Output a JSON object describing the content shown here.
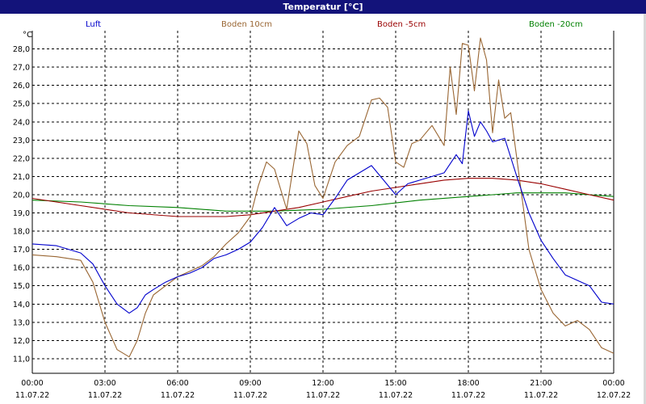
{
  "window_title": "Temperatur [°C]",
  "unit_label": "°C",
  "chart_data": {
    "type": "line",
    "title": "Temperatur [°C]",
    "ylabel": "°C",
    "ylim": [
      10.2,
      29.0
    ],
    "xlim": [
      "2022-07-11 00:00",
      "2022-07-12 00:00"
    ],
    "y_ticks": [
      "11,0",
      "12,0",
      "13,0",
      "14,0",
      "15,0",
      "16,0",
      "17,0",
      "18,0",
      "19,0",
      "20,0",
      "21,0",
      "22,0",
      "23,0",
      "24,0",
      "25,0",
      "26,0",
      "27,0",
      "28,0"
    ],
    "x_ticks": [
      {
        "time": "00:00",
        "date": "11.07.22"
      },
      {
        "time": "03:00",
        "date": "11.07.22"
      },
      {
        "time": "06:00",
        "date": "11.07.22"
      },
      {
        "time": "09:00",
        "date": "11.07.22"
      },
      {
        "time": "12:00",
        "date": "11.07.22"
      },
      {
        "time": "15:00",
        "date": "11.07.22"
      },
      {
        "time": "18:00",
        "date": "11.07.22"
      },
      {
        "time": "21:00",
        "date": "11.07.22"
      },
      {
        "time": "00:00",
        "date": "12.07.22"
      }
    ],
    "grid": true,
    "legend_position": "top",
    "series": [
      {
        "name": "Luft",
        "color": "#0000cc",
        "x": [
          "00:00",
          "01:00",
          "02:00",
          "02:30",
          "03:00",
          "03:30",
          "04:00",
          "04:20",
          "04:40",
          "05:00",
          "05:30",
          "06:00",
          "06:30",
          "07:00",
          "07:30",
          "08:00",
          "08:30",
          "09:00",
          "09:30",
          "10:00",
          "10:30",
          "11:00",
          "11:30",
          "12:00",
          "12:30",
          "13:00",
          "13:30",
          "14:00",
          "14:30",
          "15:00",
          "15:30",
          "16:00",
          "16:30",
          "17:00",
          "17:30",
          "17:45",
          "18:00",
          "18:15",
          "18:30",
          "18:45",
          "19:00",
          "19:30",
          "20:00",
          "20:30",
          "21:00",
          "21:30",
          "22:00",
          "22:30",
          "23:00",
          "23:30",
          "24:00"
        ],
        "values": [
          17.3,
          17.2,
          16.8,
          16.2,
          15.0,
          14.0,
          13.5,
          13.8,
          14.5,
          14.8,
          15.2,
          15.5,
          15.7,
          16.0,
          16.5,
          16.7,
          17.0,
          17.4,
          18.2,
          19.3,
          18.3,
          18.7,
          19.0,
          18.9,
          19.8,
          20.8,
          21.2,
          21.6,
          20.8,
          20.0,
          20.6,
          20.8,
          21.0,
          21.2,
          22.2,
          21.7,
          24.6,
          23.2,
          24.0,
          23.5,
          22.9,
          23.1,
          21.0,
          19.0,
          17.5,
          16.5,
          15.6,
          15.3,
          15.0,
          14.1,
          14.0
        ]
      },
      {
        "name": "Boden 10cm",
        "color": "#996633",
        "x": [
          "00:00",
          "01:00",
          "02:00",
          "02:30",
          "03:00",
          "03:30",
          "04:00",
          "04:20",
          "04:40",
          "05:00",
          "05:30",
          "06:00",
          "06:30",
          "07:00",
          "07:30",
          "08:00",
          "08:30",
          "09:00",
          "09:20",
          "09:40",
          "10:00",
          "10:30",
          "11:00",
          "11:20",
          "11:40",
          "12:00",
          "12:30",
          "13:00",
          "13:30",
          "14:00",
          "14:20",
          "14:40",
          "15:00",
          "15:20",
          "15:40",
          "16:00",
          "16:30",
          "17:00",
          "17:15",
          "17:30",
          "17:45",
          "18:00",
          "18:15",
          "18:30",
          "18:45",
          "19:00",
          "19:15",
          "19:30",
          "19:45",
          "20:00",
          "20:30",
          "21:00",
          "21:30",
          "22:00",
          "22:30",
          "23:00",
          "23:30",
          "24:00"
        ],
        "values": [
          16.7,
          16.6,
          16.4,
          15.2,
          13.0,
          11.5,
          11.1,
          12.0,
          13.5,
          14.5,
          15.0,
          15.5,
          15.8,
          16.1,
          16.6,
          17.3,
          17.9,
          18.8,
          20.5,
          21.8,
          21.4,
          19.2,
          23.5,
          22.8,
          20.5,
          19.8,
          21.8,
          22.7,
          23.2,
          25.2,
          25.3,
          24.8,
          21.8,
          21.5,
          22.8,
          23.0,
          23.8,
          22.7,
          27.0,
          24.4,
          28.3,
          28.2,
          25.7,
          28.6,
          27.4,
          23.4,
          26.3,
          24.2,
          24.5,
          22.0,
          17.0,
          14.8,
          13.5,
          12.8,
          13.1,
          12.6,
          11.6,
          11.3
        ]
      },
      {
        "name": "Boden -5cm",
        "color": "#990000",
        "x": [
          "00:00",
          "02:00",
          "04:00",
          "06:00",
          "08:00",
          "09:00",
          "10:00",
          "11:00",
          "12:00",
          "13:00",
          "14:00",
          "15:00",
          "16:00",
          "17:00",
          "18:00",
          "19:00",
          "20:00",
          "21:00",
          "22:00",
          "23:00",
          "24:00"
        ],
        "values": [
          19.8,
          19.4,
          19.0,
          18.8,
          18.8,
          18.9,
          19.1,
          19.3,
          19.6,
          19.9,
          20.2,
          20.4,
          20.6,
          20.8,
          20.9,
          20.9,
          20.8,
          20.6,
          20.3,
          20.0,
          19.7
        ]
      },
      {
        "name": "Boden -20cm",
        "color": "#008000",
        "x": [
          "00:00",
          "02:00",
          "04:00",
          "06:00",
          "08:00",
          "10:00",
          "12:00",
          "14:00",
          "16:00",
          "18:00",
          "19:00",
          "20:00",
          "21:00",
          "22:00",
          "23:00",
          "24:00"
        ],
        "values": [
          19.7,
          19.6,
          19.4,
          19.3,
          19.1,
          19.1,
          19.2,
          19.4,
          19.7,
          19.9,
          20.0,
          20.1,
          20.1,
          20.1,
          20.0,
          19.9
        ]
      }
    ]
  }
}
